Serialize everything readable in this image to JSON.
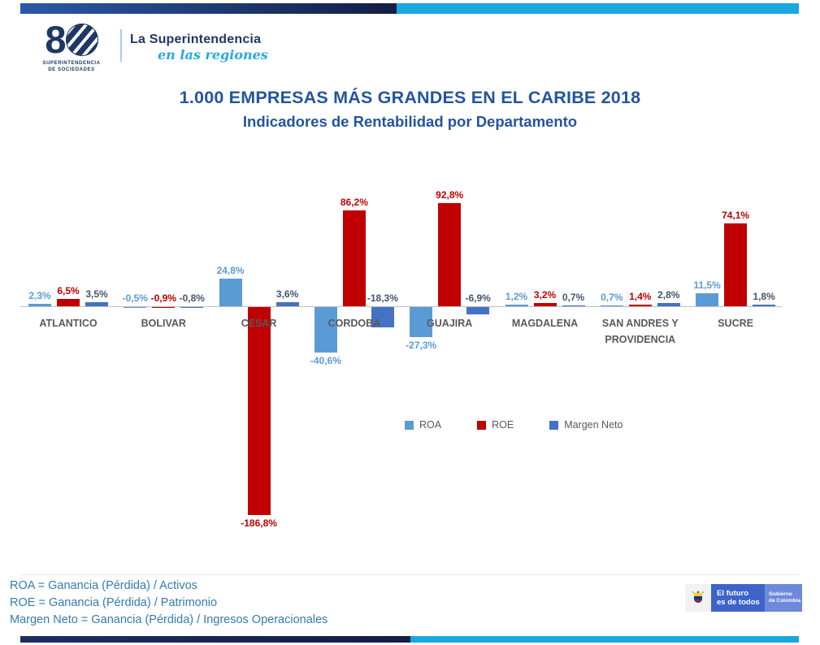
{
  "brand": {
    "dark_navy": "#131D45",
    "medium_blue": "#2B59A8",
    "light_blue": "#19A7E0"
  },
  "header": {
    "logo_number_eight": "8",
    "logo_caption_line1": "SUPERINTENDENCIA",
    "logo_caption_line2": "DE SOCIEDADES",
    "tagline_line1": "La Superintendencia",
    "tagline_line2": "en las regiones"
  },
  "title": {
    "line1": "1.000 EMPRESAS MÁS GRANDES EN EL CARIBE 2018",
    "line2": "Indicadores de Rentabilidad por Departamento",
    "color": "#24549E"
  },
  "chart_data": {
    "type": "bar",
    "title": "1.000 EMPRESAS MÁS GRANDES EN EL CARIBE 2018 — Indicadores de Rentabilidad por Departamento",
    "categories": [
      "ATLANTICO",
      "BOLIVAR",
      "CESAR",
      "CORDOBA",
      "GUAJIRA",
      "MAGDALENA",
      "SAN ANDRES Y PROVIDENCIA",
      "SUCRE"
    ],
    "series": [
      {
        "name": "ROA",
        "color": "#5B9BD5",
        "label_color": "#5B9BD5",
        "values": [
          2.3,
          -0.5,
          24.8,
          -40.6,
          -27.3,
          1.2,
          0.7,
          11.5
        ]
      },
      {
        "name": "ROE",
        "color": "#C00000",
        "label_color": "#C00000",
        "values": [
          6.5,
          -0.9,
          -186.8,
          86.2,
          92.8,
          3.2,
          1.4,
          74.1
        ]
      },
      {
        "name": "Margen Neto",
        "color": "#4472C4",
        "label_color": "#44546A",
        "values": [
          3.5,
          -0.8,
          3.6,
          -18.3,
          -6.9,
          0.7,
          2.8,
          1.8
        ]
      }
    ],
    "value_format": "one-decimal-comma-percent",
    "ylim": [
      -200,
      100
    ],
    "grid": false,
    "axis_color": "#BFBFBF",
    "category_label_color": "#595959",
    "legend_position": "bottom-center"
  },
  "legend": {
    "items": [
      {
        "label": "ROA",
        "color": "#5B9BD5"
      },
      {
        "label": "ROE",
        "color": "#C00000"
      },
      {
        "label": "Margen Neto",
        "color": "#4472C4"
      }
    ]
  },
  "footnotes": {
    "color": "#337CAE",
    "line1": "ROA = Ganancia (Pérdida) / Activos",
    "line2": "ROE = Ganancia (Pérdida) / Patrimonio",
    "line3": "Margen Neto = Ganancia (Pérdida) / Ingresos Operacionales"
  },
  "gov_badge": {
    "slogan_line1": "El futuro",
    "slogan_line2": "es de todos",
    "gov_line1": "Gobierno",
    "gov_line2": "de Colombia"
  }
}
